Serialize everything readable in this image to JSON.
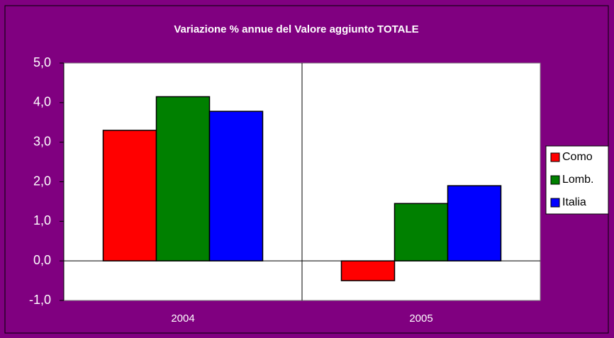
{
  "chart_data": {
    "type": "bar",
    "title": "Variazione % annue del Valore aggiunto TOTALE",
    "categories": [
      "2004",
      "2005"
    ],
    "series": [
      {
        "name": "Como",
        "color": "#ff0000",
        "values": [
          3.3,
          -0.5
        ]
      },
      {
        "name": "Lomb.",
        "color": "#008000",
        "values": [
          4.15,
          1.45
        ]
      },
      {
        "name": "Italia",
        "color": "#0000ff",
        "values": [
          3.78,
          1.9
        ]
      }
    ],
    "ylim": [
      -1,
      5
    ],
    "yticks": [
      {
        "value": -1,
        "label": "-1,0"
      },
      {
        "value": 0,
        "label": "0,0"
      },
      {
        "value": 1,
        "label": "1,0"
      },
      {
        "value": 2,
        "label": "2,0"
      },
      {
        "value": 3,
        "label": "3,0"
      },
      {
        "value": 4,
        "label": "4,0"
      },
      {
        "value": 5,
        "label": "5,0"
      }
    ],
    "legend": "right"
  }
}
